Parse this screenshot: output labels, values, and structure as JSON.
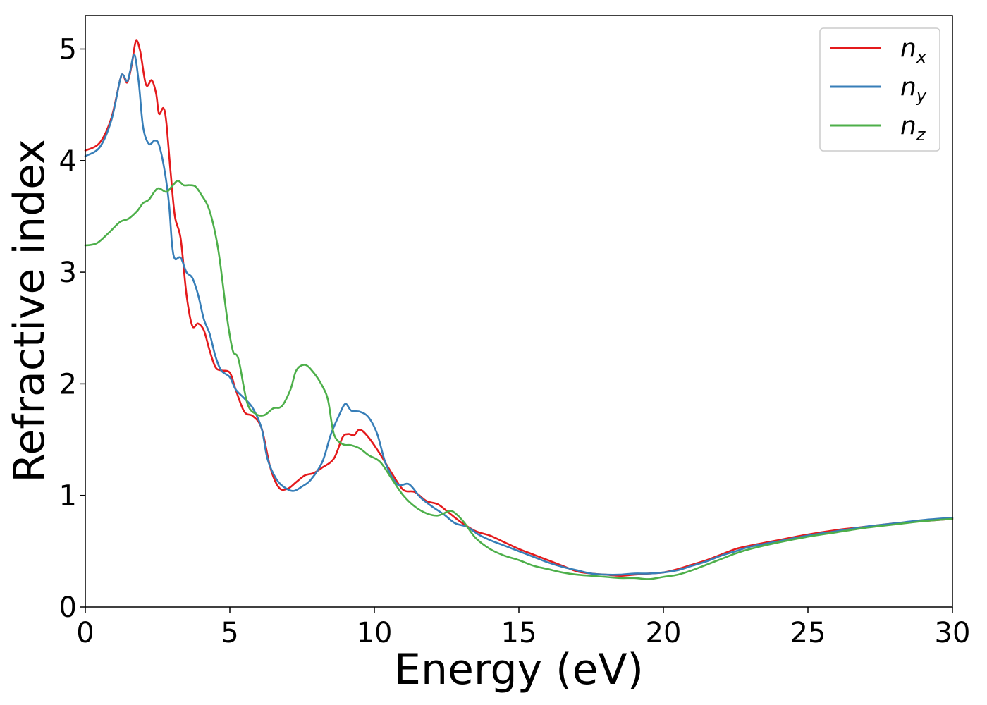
{
  "chart_data": {
    "type": "line",
    "title": "",
    "xlabel": "Energy (eV)",
    "ylabel": "Refractive index",
    "xlim": [
      0,
      30
    ],
    "ylim": [
      0,
      5.3
    ],
    "xticks": [
      0,
      5,
      10,
      15,
      20,
      25,
      30
    ],
    "yticks": [
      0,
      1,
      2,
      3,
      4,
      5
    ],
    "grid": false,
    "legend_position": "top-right",
    "series": [
      {
        "name": "n",
        "subscript": "x",
        "color": "#e41a1c",
        "points": [
          [
            0,
            4.09
          ],
          [
            0.5,
            4.16
          ],
          [
            0.9,
            4.38
          ],
          [
            1.2,
            4.72
          ],
          [
            1.3,
            4.77
          ],
          [
            1.45,
            4.7
          ],
          [
            1.6,
            4.85
          ],
          [
            1.75,
            5.07
          ],
          [
            1.9,
            4.98
          ],
          [
            2.1,
            4.68
          ],
          [
            2.3,
            4.72
          ],
          [
            2.45,
            4.6
          ],
          [
            2.55,
            4.42
          ],
          [
            2.7,
            4.47
          ],
          [
            2.8,
            4.35
          ],
          [
            2.95,
            3.9
          ],
          [
            3.1,
            3.5
          ],
          [
            3.3,
            3.3
          ],
          [
            3.5,
            2.8
          ],
          [
            3.7,
            2.52
          ],
          [
            3.9,
            2.54
          ],
          [
            4.1,
            2.48
          ],
          [
            4.3,
            2.3
          ],
          [
            4.5,
            2.15
          ],
          [
            4.7,
            2.12
          ],
          [
            5.0,
            2.1
          ],
          [
            5.2,
            1.95
          ],
          [
            5.5,
            1.75
          ],
          [
            5.8,
            1.71
          ],
          [
            6.1,
            1.6
          ],
          [
            6.4,
            1.25
          ],
          [
            6.7,
            1.07
          ],
          [
            7.0,
            1.06
          ],
          [
            7.3,
            1.12
          ],
          [
            7.6,
            1.18
          ],
          [
            7.9,
            1.2
          ],
          [
            8.2,
            1.25
          ],
          [
            8.6,
            1.33
          ],
          [
            8.9,
            1.52
          ],
          [
            9.1,
            1.55
          ],
          [
            9.3,
            1.54
          ],
          [
            9.5,
            1.59
          ],
          [
            9.8,
            1.52
          ],
          [
            10.2,
            1.37
          ],
          [
            10.6,
            1.2
          ],
          [
            11.0,
            1.05
          ],
          [
            11.4,
            1.03
          ],
          [
            11.8,
            0.95
          ],
          [
            12.2,
            0.92
          ],
          [
            12.6,
            0.84
          ],
          [
            13.0,
            0.76
          ],
          [
            13.5,
            0.68
          ],
          [
            14.0,
            0.64
          ],
          [
            14.5,
            0.58
          ],
          [
            15.0,
            0.52
          ],
          [
            15.5,
            0.47
          ],
          [
            16.0,
            0.42
          ],
          [
            16.5,
            0.37
          ],
          [
            17.0,
            0.32
          ],
          [
            17.5,
            0.3
          ],
          [
            18.0,
            0.29
          ],
          [
            18.5,
            0.28
          ],
          [
            19.0,
            0.29
          ],
          [
            19.5,
            0.3
          ],
          [
            20.0,
            0.31
          ],
          [
            20.5,
            0.34
          ],
          [
            21.0,
            0.38
          ],
          [
            21.5,
            0.42
          ],
          [
            22.0,
            0.47
          ],
          [
            22.5,
            0.52
          ],
          [
            23.0,
            0.55
          ],
          [
            24.0,
            0.6
          ],
          [
            25.0,
            0.65
          ],
          [
            26.0,
            0.69
          ],
          [
            27.0,
            0.72
          ],
          [
            28.0,
            0.75
          ],
          [
            29.0,
            0.77
          ],
          [
            30.0,
            0.79
          ]
        ]
      },
      {
        "name": "n",
        "subscript": "y",
        "color": "#377eb8",
        "points": [
          [
            0,
            4.04
          ],
          [
            0.5,
            4.12
          ],
          [
            0.9,
            4.36
          ],
          [
            1.2,
            4.72
          ],
          [
            1.3,
            4.77
          ],
          [
            1.45,
            4.71
          ],
          [
            1.55,
            4.8
          ],
          [
            1.7,
            4.95
          ],
          [
            1.85,
            4.7
          ],
          [
            2.0,
            4.3
          ],
          [
            2.2,
            4.15
          ],
          [
            2.4,
            4.18
          ],
          [
            2.55,
            4.14
          ],
          [
            2.75,
            3.9
          ],
          [
            2.9,
            3.6
          ],
          [
            3.0,
            3.25
          ],
          [
            3.1,
            3.12
          ],
          [
            3.3,
            3.13
          ],
          [
            3.5,
            3.0
          ],
          [
            3.7,
            2.95
          ],
          [
            3.9,
            2.8
          ],
          [
            4.1,
            2.58
          ],
          [
            4.3,
            2.45
          ],
          [
            4.5,
            2.25
          ],
          [
            4.7,
            2.12
          ],
          [
            5.0,
            2.06
          ],
          [
            5.2,
            1.95
          ],
          [
            5.5,
            1.87
          ],
          [
            5.8,
            1.78
          ],
          [
            6.1,
            1.6
          ],
          [
            6.3,
            1.33
          ],
          [
            6.6,
            1.15
          ],
          [
            6.9,
            1.07
          ],
          [
            7.2,
            1.04
          ],
          [
            7.5,
            1.08
          ],
          [
            7.8,
            1.14
          ],
          [
            8.2,
            1.3
          ],
          [
            8.5,
            1.55
          ],
          [
            8.8,
            1.73
          ],
          [
            9.0,
            1.82
          ],
          [
            9.2,
            1.76
          ],
          [
            9.5,
            1.75
          ],
          [
            9.8,
            1.7
          ],
          [
            10.1,
            1.55
          ],
          [
            10.4,
            1.28
          ],
          [
            10.8,
            1.1
          ],
          [
            11.2,
            1.1
          ],
          [
            11.6,
            0.98
          ],
          [
            12.0,
            0.9
          ],
          [
            12.4,
            0.83
          ],
          [
            12.8,
            0.75
          ],
          [
            13.2,
            0.72
          ],
          [
            13.6,
            0.65
          ],
          [
            14.0,
            0.6
          ],
          [
            14.5,
            0.55
          ],
          [
            15.0,
            0.5
          ],
          [
            15.5,
            0.45
          ],
          [
            16.0,
            0.4
          ],
          [
            16.5,
            0.36
          ],
          [
            17.0,
            0.33
          ],
          [
            17.5,
            0.3
          ],
          [
            18.0,
            0.29
          ],
          [
            18.5,
            0.29
          ],
          [
            19.0,
            0.3
          ],
          [
            19.5,
            0.3
          ],
          [
            20.0,
            0.31
          ],
          [
            20.5,
            0.33
          ],
          [
            21.0,
            0.37
          ],
          [
            21.5,
            0.41
          ],
          [
            22.0,
            0.46
          ],
          [
            22.5,
            0.5
          ],
          [
            23.0,
            0.54
          ],
          [
            24.0,
            0.59
          ],
          [
            25.0,
            0.64
          ],
          [
            26.0,
            0.68
          ],
          [
            27.0,
            0.72
          ],
          [
            28.0,
            0.75
          ],
          [
            29.0,
            0.78
          ],
          [
            30.0,
            0.8
          ]
        ]
      },
      {
        "name": "n",
        "subscript": "z",
        "color": "#4daf4a",
        "points": [
          [
            0,
            3.24
          ],
          [
            0.4,
            3.26
          ],
          [
            0.8,
            3.35
          ],
          [
            1.2,
            3.45
          ],
          [
            1.5,
            3.48
          ],
          [
            1.8,
            3.55
          ],
          [
            2.0,
            3.62
          ],
          [
            2.2,
            3.65
          ],
          [
            2.5,
            3.75
          ],
          [
            2.8,
            3.72
          ],
          [
            3.0,
            3.77
          ],
          [
            3.2,
            3.82
          ],
          [
            3.4,
            3.78
          ],
          [
            3.6,
            3.78
          ],
          [
            3.8,
            3.77
          ],
          [
            4.0,
            3.7
          ],
          [
            4.3,
            3.55
          ],
          [
            4.6,
            3.2
          ],
          [
            4.9,
            2.6
          ],
          [
            5.1,
            2.3
          ],
          [
            5.3,
            2.22
          ],
          [
            5.6,
            1.83
          ],
          [
            5.9,
            1.73
          ],
          [
            6.2,
            1.72
          ],
          [
            6.5,
            1.78
          ],
          [
            6.8,
            1.8
          ],
          [
            7.1,
            1.95
          ],
          [
            7.3,
            2.12
          ],
          [
            7.6,
            2.17
          ],
          [
            7.9,
            2.1
          ],
          [
            8.2,
            1.98
          ],
          [
            8.4,
            1.85
          ],
          [
            8.6,
            1.55
          ],
          [
            8.9,
            1.46
          ],
          [
            9.2,
            1.45
          ],
          [
            9.5,
            1.42
          ],
          [
            9.8,
            1.36
          ],
          [
            10.2,
            1.3
          ],
          [
            10.6,
            1.15
          ],
          [
            11.0,
            1.0
          ],
          [
            11.4,
            0.9
          ],
          [
            11.8,
            0.84
          ],
          [
            12.2,
            0.82
          ],
          [
            12.6,
            0.86
          ],
          [
            12.8,
            0.84
          ],
          [
            13.1,
            0.76
          ],
          [
            13.5,
            0.62
          ],
          [
            14.0,
            0.52
          ],
          [
            14.5,
            0.46
          ],
          [
            15.0,
            0.42
          ],
          [
            15.5,
            0.37
          ],
          [
            16.0,
            0.34
          ],
          [
            16.5,
            0.31
          ],
          [
            17.0,
            0.29
          ],
          [
            17.5,
            0.28
          ],
          [
            18.0,
            0.27
          ],
          [
            18.5,
            0.26
          ],
          [
            19.0,
            0.26
          ],
          [
            19.5,
            0.25
          ],
          [
            20.0,
            0.27
          ],
          [
            20.5,
            0.29
          ],
          [
            21.0,
            0.33
          ],
          [
            21.5,
            0.38
          ],
          [
            22.0,
            0.43
          ],
          [
            22.5,
            0.48
          ],
          [
            23.0,
            0.52
          ],
          [
            24.0,
            0.58
          ],
          [
            25.0,
            0.63
          ],
          [
            26.0,
            0.67
          ],
          [
            27.0,
            0.71
          ],
          [
            28.0,
            0.74
          ],
          [
            29.0,
            0.77
          ],
          [
            30.0,
            0.79
          ]
        ]
      }
    ]
  }
}
